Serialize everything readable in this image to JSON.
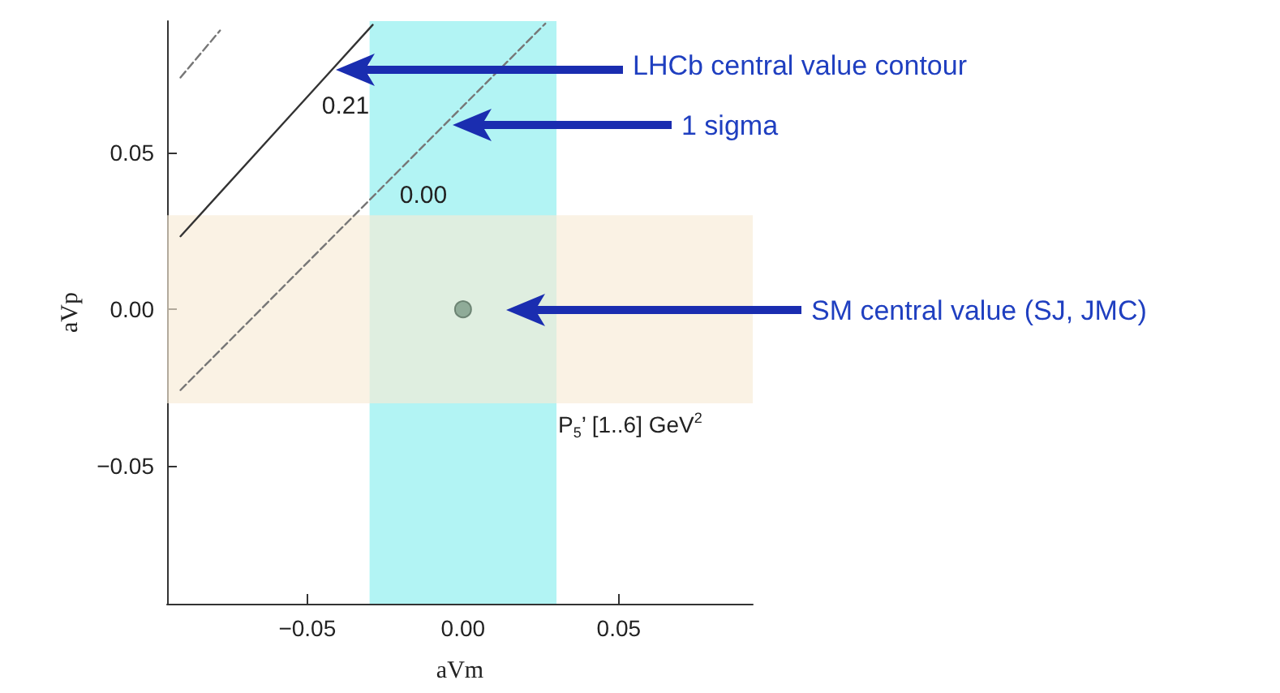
{
  "chart_data": {
    "type": "line",
    "xlabel": "aVm",
    "ylabel": "aVp",
    "xlim": [
      -0.095,
      0.093
    ],
    "ylim": [
      -0.094,
      0.092
    ],
    "xticks": [
      {
        "value": -0.05,
        "label": "−0.05"
      },
      {
        "value": 0,
        "label": "0.00"
      },
      {
        "value": 0.05,
        "label": "0.05"
      }
    ],
    "yticks": [
      {
        "value": -0.05,
        "label": "−0.05"
      },
      {
        "value": 0,
        "label": "0.00"
      },
      {
        "value": 0.05,
        "label": "0.05"
      }
    ],
    "grid": false,
    "legend": false,
    "marker": "none",
    "series": [
      {
        "name": "0.21",
        "color": "#333333",
        "line_style": "solid",
        "x": [
          -0.0907,
          -0.045,
          -0.029
        ],
        "values": [
          0.0233,
          0.0733,
          0.0908
        ]
      },
      {
        "name": "0.00",
        "color": "#777777",
        "line_style": "dashed",
        "x": [
          -0.0907,
          -0.02,
          0.0264
        ],
        "values": [
          -0.0258,
          0.0449,
          0.0912
        ]
      },
      {
        "color": "#777777",
        "line_style": "dashed",
        "x": [
          -0.0907,
          -0.078
        ],
        "values": [
          0.074,
          0.089
        ]
      },
      {
        "type": "scatter",
        "marker": "circle",
        "color": "#7a9a86",
        "x": [
          0
        ],
        "values": [
          0
        ]
      }
    ],
    "bands": [
      {
        "axis": "x",
        "from": -0.03,
        "to": 0.03,
        "color": "#b2f4f4"
      },
      {
        "axis": "y",
        "from": -0.03,
        "to": 0.03,
        "color": "#f8ebd6",
        "label": "P$_{5}$’  [1..6] GeV$^{2}$"
      }
    ],
    "annotations": [
      "LHCb central value contour",
      "1 sigma",
      "SM central value (SJ, JMC)"
    ]
  }
}
